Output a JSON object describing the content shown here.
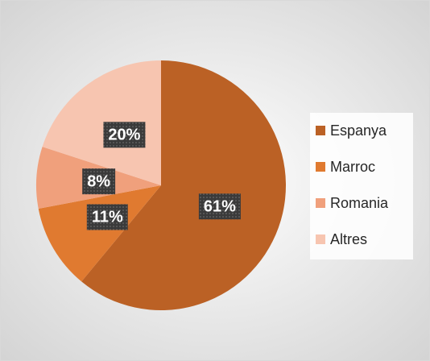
{
  "chart_data": {
    "type": "pie",
    "categories": [
      "Espanya",
      "Marroc",
      "Romania",
      "Altres"
    ],
    "values": [
      61,
      11,
      8,
      20
    ],
    "value_labels": [
      "61%",
      "11%",
      "8%",
      "20%"
    ],
    "colors": [
      "#bb6125",
      "#e07a30",
      "#f0a07c",
      "#f7c5b0"
    ],
    "legend": "right"
  }
}
